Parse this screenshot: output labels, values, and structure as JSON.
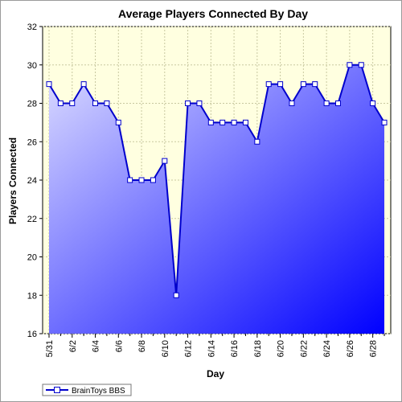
{
  "chart_data": {
    "type": "area",
    "title": "Average Players Connected By Day",
    "xlabel": "Day",
    "ylabel": "Players Connected",
    "ylim": [
      16,
      32
    ],
    "yticks": [
      16,
      18,
      20,
      22,
      24,
      26,
      28,
      30,
      32
    ],
    "grid": true,
    "legend_position": "bottom-left",
    "colors": {
      "plot_background": "#ffffe0",
      "line": "#0000cc",
      "fill_top": "#dcdcff",
      "fill_bottom": "#0000ff",
      "marker_fill": "#ffffff",
      "grid": "#c8c8a0"
    },
    "x": [
      "5/31",
      "6/1",
      "6/2",
      "6/3",
      "6/4",
      "6/5",
      "6/6",
      "6/7",
      "6/8",
      "6/9",
      "6/10",
      "6/11",
      "6/12",
      "6/13",
      "6/14",
      "6/15",
      "6/16",
      "6/17",
      "6/18",
      "6/19",
      "6/20",
      "6/21",
      "6/22",
      "6/23",
      "6/24",
      "6/25",
      "6/26",
      "6/27",
      "6/28",
      "6/29"
    ],
    "x_tick_labels": [
      "5/31",
      "6/2",
      "6/4",
      "6/6",
      "6/8",
      "6/10",
      "6/12",
      "6/14",
      "6/16",
      "6/18",
      "6/20",
      "6/22",
      "6/24",
      "6/26",
      "6/28"
    ],
    "series": [
      {
        "name": "BrainToys BBS",
        "values": [
          29,
          28,
          28,
          29,
          28,
          28,
          27,
          24,
          24,
          24,
          25,
          18,
          28,
          28,
          27,
          27,
          27,
          27,
          26,
          29,
          29,
          28,
          29,
          29,
          28,
          28,
          30,
          30,
          28,
          27
        ]
      }
    ]
  }
}
